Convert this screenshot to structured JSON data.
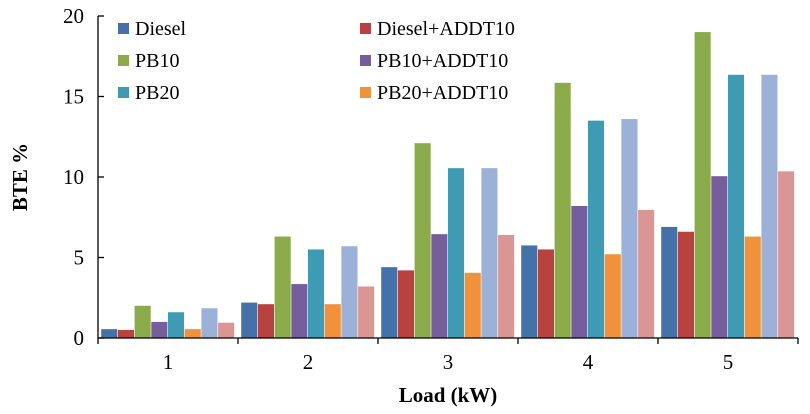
{
  "chart_data": {
    "type": "bar",
    "xlabel": "Load (kW)",
    "ylabel": "BTE %",
    "categories": [
      "1",
      "2",
      "3",
      "4",
      "5"
    ],
    "ylim": [
      0,
      20
    ],
    "yticks": [
      "0",
      "5",
      "10",
      "15",
      "20"
    ],
    "grid": false,
    "legend_position": "top-left",
    "series": [
      {
        "name": "Diesel",
        "color": "#4472A8",
        "values": [
          0.55,
          2.2,
          4.4,
          5.75,
          6.9
        ]
      },
      {
        "name": "Diesel+ADDT10",
        "color": "#B8423F",
        "values": [
          0.5,
          2.1,
          4.2,
          5.5,
          6.6
        ]
      },
      {
        "name": "PB10",
        "color": "#8BAA4A",
        "values": [
          2.0,
          6.3,
          12.1,
          15.85,
          19.0
        ]
      },
      {
        "name": "PB10+ADDT10",
        "color": "#765D9B",
        "values": [
          1.0,
          3.35,
          6.45,
          8.2,
          10.05
        ]
      },
      {
        "name": "PB20",
        "color": "#3E9BB3",
        "values": [
          1.6,
          5.5,
          10.55,
          13.5,
          16.35
        ]
      },
      {
        "name": "PB20+ADDT10",
        "color": "#F0913C",
        "values": [
          0.55,
          2.1,
          4.05,
          5.2,
          6.3
        ]
      },
      {
        "name": "",
        "color": "#9BB1D8",
        "values": [
          1.85,
          5.7,
          10.55,
          13.6,
          16.35
        ]
      },
      {
        "name": "",
        "color": "#D99694",
        "values": [
          0.95,
          3.2,
          6.4,
          7.95,
          10.35
        ]
      }
    ]
  }
}
